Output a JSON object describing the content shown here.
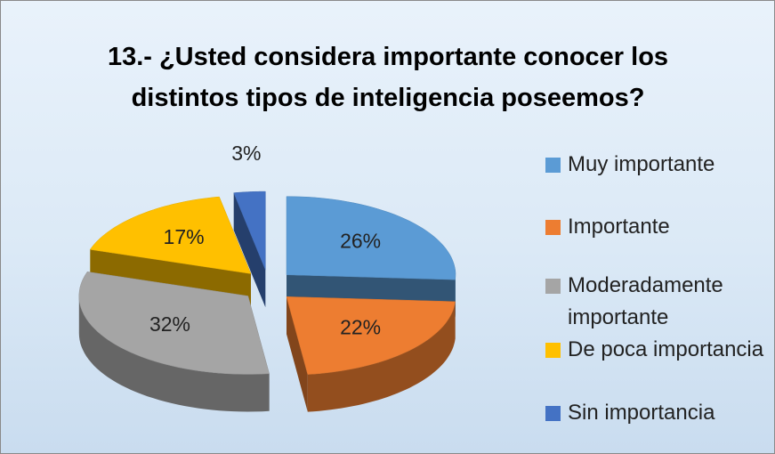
{
  "chart_data": {
    "type": "pie",
    "three_d": true,
    "exploded": true,
    "title": "13.- ¿Usted considera importante conocer los distintos tipos de inteligencia poseemos?",
    "categories": [
      "Muy importante",
      "Importante",
      "Moderadamente importante",
      "De poca importancia",
      "Sin importancia"
    ],
    "values": [
      26,
      22,
      32,
      17,
      3
    ],
    "value_labels": [
      "26%",
      "22%",
      "32%",
      "17%",
      "3%"
    ],
    "colors": [
      "#5b9bd5",
      "#ed7d31",
      "#a5a5a5",
      "#ffc000",
      "#4472c4"
    ],
    "legend": "right"
  }
}
